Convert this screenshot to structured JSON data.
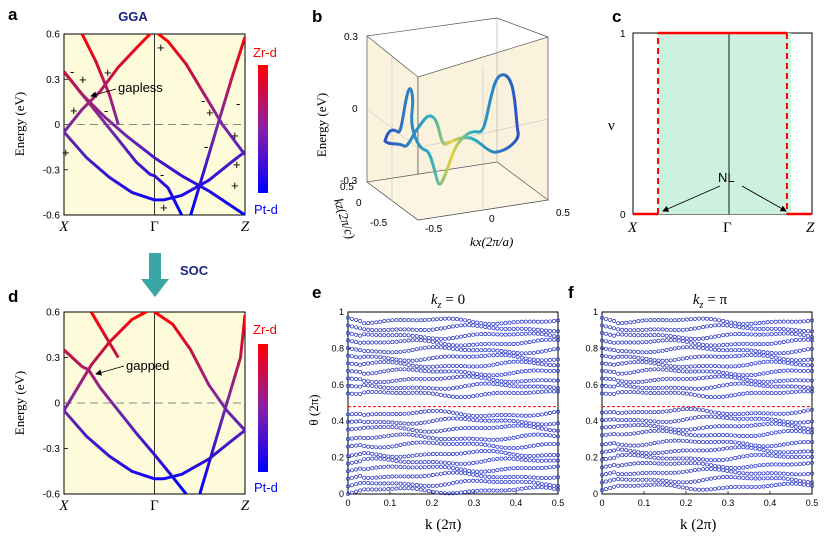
{
  "chart_data": [
    {
      "panel": "a",
      "type": "line",
      "title": "GGA",
      "ylabel": "Energy (eV)",
      "ylim": [
        -0.6,
        0.6
      ],
      "yticks": [
        "0.6",
        "0.3",
        "0",
        "-0.3",
        "-0.6"
      ],
      "xtick_labels": [
        "X",
        "Γ",
        "Z"
      ],
      "annotation": "gapless",
      "parity_signs": [
        "+",
        "-",
        "+",
        "+",
        "-",
        "+",
        "+",
        "-",
        "+",
        "-",
        "+",
        "-",
        "+",
        "+",
        "-",
        "+"
      ],
      "colorbar": {
        "top": "Zr-d",
        "bottom": "Pt-d",
        "top_color": "#ff0000",
        "bottom_color": "#0000ff"
      },
      "series": [
        {
          "name": "band A",
          "x": [
            0,
            0.2,
            0.45,
            0.7,
            1.0,
            1.3,
            1.6,
            2.0
          ],
          "values": [
            0.35,
            0.2,
            0.05,
            -0.08,
            -0.22,
            -0.34,
            -0.44,
            -0.6
          ]
        },
        {
          "name": "band B",
          "x": [
            0,
            0.25,
            0.5,
            0.75,
            1.0,
            1.1,
            1.3,
            1.6,
            1.85,
            2.0
          ],
          "values": [
            -0.05,
            -0.22,
            -0.35,
            -0.45,
            -0.5,
            -0.5,
            -0.47,
            -0.37,
            -0.25,
            -0.18
          ]
        },
        {
          "name": "band C",
          "x": [
            0,
            0.2,
            0.4,
            0.6,
            0.82,
            0.95,
            1.0
          ],
          "values": [
            -0.05,
            0.1,
            0.22,
            0.38,
            0.52,
            0.6,
            0.63
          ]
        },
        {
          "name": "band D",
          "x": [
            0,
            0.2,
            0.4,
            0.6,
            0.8,
            0.95,
            1.0,
            1.15,
            1.3
          ],
          "values": [
            0.35,
            0.2,
            0.05,
            -0.1,
            -0.25,
            -0.33,
            -0.34,
            -0.42,
            -0.6
          ]
        },
        {
          "name": "band E",
          "x": [
            1.0,
            1.15,
            1.35,
            1.55,
            1.75,
            1.9,
            2.0
          ],
          "values": [
            0.62,
            0.55,
            0.4,
            0.2,
            0.0,
            -0.12,
            -0.2
          ]
        },
        {
          "name": "band F",
          "x": [
            1.4,
            1.55,
            1.7,
            1.85,
            2.0
          ],
          "values": [
            -0.6,
            -0.3,
            0.0,
            0.3,
            0.58
          ]
        },
        {
          "name": "band G",
          "x": [
            0.2,
            0.35,
            0.5,
            0.6
          ],
          "values": [
            0.6,
            0.42,
            0.2,
            0.0
          ]
        }
      ]
    },
    {
      "panel": "b",
      "type": "line",
      "zlabel": "Energy (eV)",
      "xlabel": "kx(2π/a)",
      "ylabel": "kz(2π/c)",
      "zticks": [
        "0.3",
        "0",
        "-0.3"
      ],
      "xticks": [
        "-0.5",
        "0",
        "0.5"
      ],
      "yticks": [
        "0.5",
        "0",
        "-0.5"
      ],
      "series": [
        {
          "name": "nodal line 3D",
          "x": [
            -0.5,
            -0.25,
            0,
            0.25,
            0.5
          ],
          "values": [
            0.2,
            -0.25,
            0.1,
            -0.25,
            0.2
          ]
        }
      ]
    },
    {
      "panel": "c",
      "type": "line",
      "ylabel": "ν",
      "ylim": [
        0,
        1
      ],
      "yticks": [
        "1",
        "0"
      ],
      "xtick_labels": [
        "X",
        "Γ",
        "Z"
      ],
      "annotation": "NL",
      "series": [
        {
          "name": "ν",
          "x": [
            0,
            0.14,
            0.14,
            0.86,
            0.86,
            1.0
          ],
          "values": [
            0,
            0,
            1,
            1,
            0,
            0
          ]
        }
      ]
    },
    {
      "panel": "d",
      "type": "line",
      "ylabel": "Energy (eV)",
      "ylim": [
        -0.6,
        0.6
      ],
      "yticks": [
        "0.6",
        "0.3",
        "0",
        "-0.3",
        "-0.6"
      ],
      "xtick_labels": [
        "X",
        "Γ",
        "Z"
      ],
      "annotation": "gapped",
      "arrow_label": "SOC",
      "colorbar": {
        "top": "Zr-d",
        "bottom": "Pt-d",
        "top_color": "#ff0000",
        "bottom_color": "#0000ff"
      },
      "series": [
        {
          "name": "band A",
          "x": [
            0,
            0.25,
            0.5,
            0.75,
            1.0,
            1.1,
            1.3,
            1.6,
            1.85,
            2.0
          ],
          "values": [
            -0.05,
            -0.22,
            -0.35,
            -0.45,
            -0.5,
            -0.5,
            -0.47,
            -0.37,
            -0.25,
            -0.18
          ]
        },
        {
          "name": "band B",
          "x": [
            0,
            0.2,
            0.27,
            0.4,
            0.6,
            0.8,
            1.0,
            1.15,
            1.35
          ],
          "values": [
            0.35,
            0.24,
            0.22,
            0.1,
            -0.05,
            -0.2,
            -0.34,
            -0.45,
            -0.6
          ]
        },
        {
          "name": "band C",
          "x": [
            0,
            0.15,
            0.3,
            0.5,
            0.75,
            1.0
          ],
          "values": [
            -0.05,
            0.1,
            0.25,
            0.4,
            0.55,
            0.63
          ]
        },
        {
          "name": "band D",
          "x": [
            0.3,
            0.45,
            0.6
          ],
          "values": [
            0.6,
            0.45,
            0.3
          ]
        },
        {
          "name": "band E",
          "x": [
            1.0,
            1.2,
            1.4,
            1.6,
            1.8,
            2.0
          ],
          "values": [
            0.6,
            0.52,
            0.35,
            0.12,
            -0.05,
            -0.18
          ]
        },
        {
          "name": "band F",
          "x": [
            1.5,
            1.65,
            1.8,
            1.95,
            2.0
          ],
          "values": [
            -0.6,
            -0.3,
            0.0,
            0.3,
            0.58
          ]
        }
      ]
    },
    {
      "panel": "e",
      "type": "scatter",
      "title": "kz = 0",
      "title_symbol": "k",
      "title_subscript": "z",
      "title_value": "= 0",
      "xlabel": "k (2π)",
      "ylabel": "θ (2π)",
      "xlim": [
        0,
        0.5
      ],
      "ylim": [
        0,
        1
      ],
      "xticks": [
        "0",
        "0.1",
        "0.2",
        "0.3",
        "0.4",
        "0.5"
      ],
      "yticks": [
        "1",
        "0.8",
        "0.6",
        "0.4",
        "0.2",
        "0"
      ],
      "reference_line": 0.48,
      "levels": [
        0.02,
        0.06,
        0.1,
        0.14,
        0.18,
        0.22,
        0.27,
        0.31,
        0.36,
        0.4,
        0.44,
        0.55,
        0.59,
        0.63,
        0.67,
        0.71,
        0.75,
        0.79,
        0.83,
        0.87,
        0.91,
        0.95
      ]
    },
    {
      "panel": "f",
      "type": "scatter",
      "title": "kz = π",
      "title_symbol": "k",
      "title_subscript": "z",
      "title_value": "= π",
      "xlabel": "k (2π)",
      "xlim": [
        0,
        0.5
      ],
      "ylim": [
        0,
        1
      ],
      "xticks": [
        "0",
        "0.1",
        "0.2",
        "0.3",
        "0.4",
        "0.5"
      ],
      "yticks": [
        "1",
        "0.8",
        "0.6",
        "0.4",
        "0.2",
        "0"
      ],
      "reference_line": 0.48,
      "levels": [
        0.04,
        0.08,
        0.12,
        0.16,
        0.2,
        0.24,
        0.28,
        0.33,
        0.37,
        0.41,
        0.45,
        0.55,
        0.59,
        0.63,
        0.67,
        0.71,
        0.75,
        0.79,
        0.83,
        0.87,
        0.91,
        0.95
      ]
    }
  ],
  "panel_letters": [
    "a",
    "b",
    "c",
    "d",
    "e",
    "f"
  ]
}
